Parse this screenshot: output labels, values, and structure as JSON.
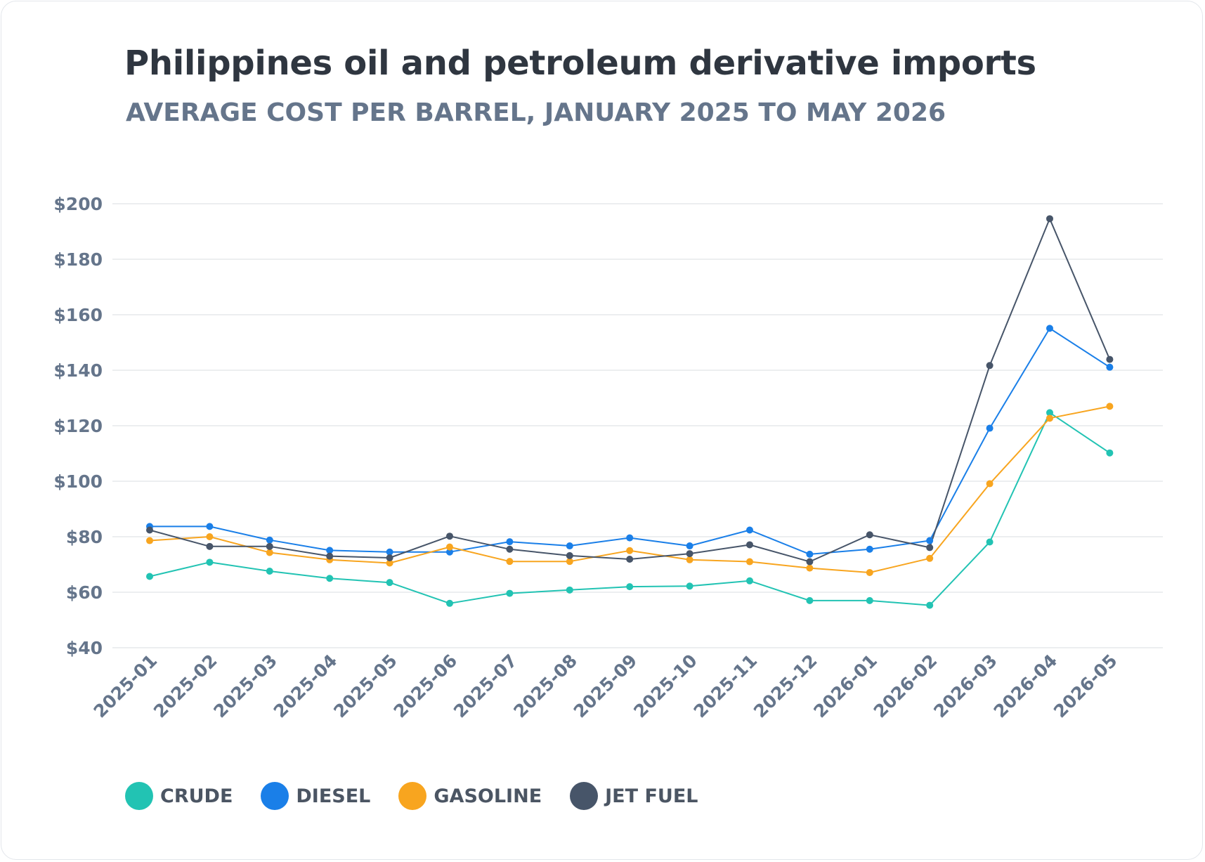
{
  "chart_data": {
    "type": "line",
    "title": "Philippines oil and petroleum derivative imports",
    "subtitle": "AVERAGE COST PER BARREL, JANUARY 2025 TO MAY 2026",
    "xlabel": "",
    "ylabel": "",
    "categories": [
      "2025-01",
      "2025-02",
      "2025-03",
      "2025-04",
      "2025-05",
      "2025-06",
      "2025-07",
      "2025-08",
      "2025-09",
      "2025-10",
      "2025-11",
      "2025-12",
      "2026-01",
      "2026-02",
      "2026-03",
      "2026-04",
      "2026-05"
    ],
    "y_ticks": [
      "$200",
      "$180",
      "$160",
      "$140",
      "$120",
      "$100",
      "$80",
      "$60",
      "$40"
    ],
    "ylim": [
      40,
      200
    ],
    "grid": true,
    "legend_position": "bottom-left",
    "series": [
      {
        "name": "CRUDE",
        "color": "#22c3b3",
        "values": [
          65.7,
          70.8,
          67.6,
          65.0,
          63.5,
          56.0,
          59.6,
          60.8,
          62.0,
          62.2,
          64.1,
          57.0,
          57.0,
          55.3,
          78.1,
          124.7,
          110.2
        ]
      },
      {
        "name": "DIESEL",
        "color": "#1a7fe8",
        "values": [
          83.7,
          83.7,
          78.8,
          75.1,
          74.5,
          74.5,
          78.2,
          76.7,
          79.6,
          76.7,
          82.4,
          73.7,
          75.5,
          78.6,
          119.1,
          155.1,
          141.1
        ]
      },
      {
        "name": "GASOLINE",
        "color": "#f8a51f",
        "values": [
          78.6,
          80.0,
          74.3,
          71.7,
          70.5,
          76.3,
          71.1,
          71.1,
          75.0,
          71.7,
          71.0,
          68.7,
          67.1,
          72.2,
          99.1,
          122.7,
          127.0
        ]
      },
      {
        "name": "JET FUEL",
        "color": "#475569",
        "values": [
          82.4,
          76.5,
          76.5,
          73.0,
          72.4,
          80.2,
          75.5,
          73.2,
          71.9,
          73.9,
          77.1,
          71.0,
          80.7,
          76.1,
          141.7,
          194.6,
          143.9
        ]
      }
    ]
  }
}
